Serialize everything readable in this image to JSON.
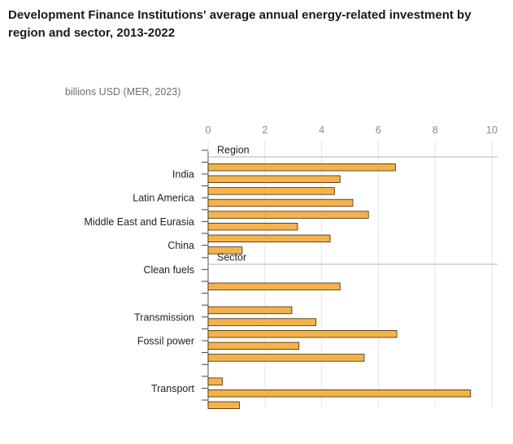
{
  "title": "Development Finance Institutions' average annual energy-related investment by region and sector, 2013-2022",
  "unit_label": "billions USD (MER, 2023)",
  "colors": {
    "bar_fill": "#f5b24b",
    "bar_stroke": "#3a2a0a",
    "grid": "#e6e6e6",
    "separator": "#b3b3b3",
    "tick_text": "#8a8a8a",
    "label_text": "#222222"
  },
  "chart_data": {
    "type": "bar",
    "orientation": "horizontal",
    "title": "Development Finance Institutions' average annual energy-related investment by region and sector, 2013-2022",
    "xlabel": "billions USD (MER, 2023)",
    "xlim": [
      0,
      10
    ],
    "xticks": [
      0,
      2,
      4,
      6,
      8,
      10
    ],
    "grid": true,
    "groups": [
      {
        "name": "Region",
        "categories": [
          "",
          "",
          "India",
          "",
          "Latin America",
          "",
          "Middle East and Eurasia",
          "",
          "China"
        ],
        "values": [
          null,
          6.6,
          4.65,
          4.45,
          5.1,
          5.65,
          3.15,
          4.3,
          1.2
        ]
      },
      {
        "name": "Sector",
        "categories": [
          "",
          "Clean fuels",
          "",
          "",
          "",
          "Transmission",
          "",
          "Fossil power",
          "",
          "",
          "",
          "Transport",
          ""
        ],
        "values": [
          null,
          null,
          4.65,
          null,
          2.95,
          3.8,
          6.65,
          3.2,
          5.5,
          null,
          0.5,
          9.25,
          1.1
        ]
      }
    ]
  }
}
